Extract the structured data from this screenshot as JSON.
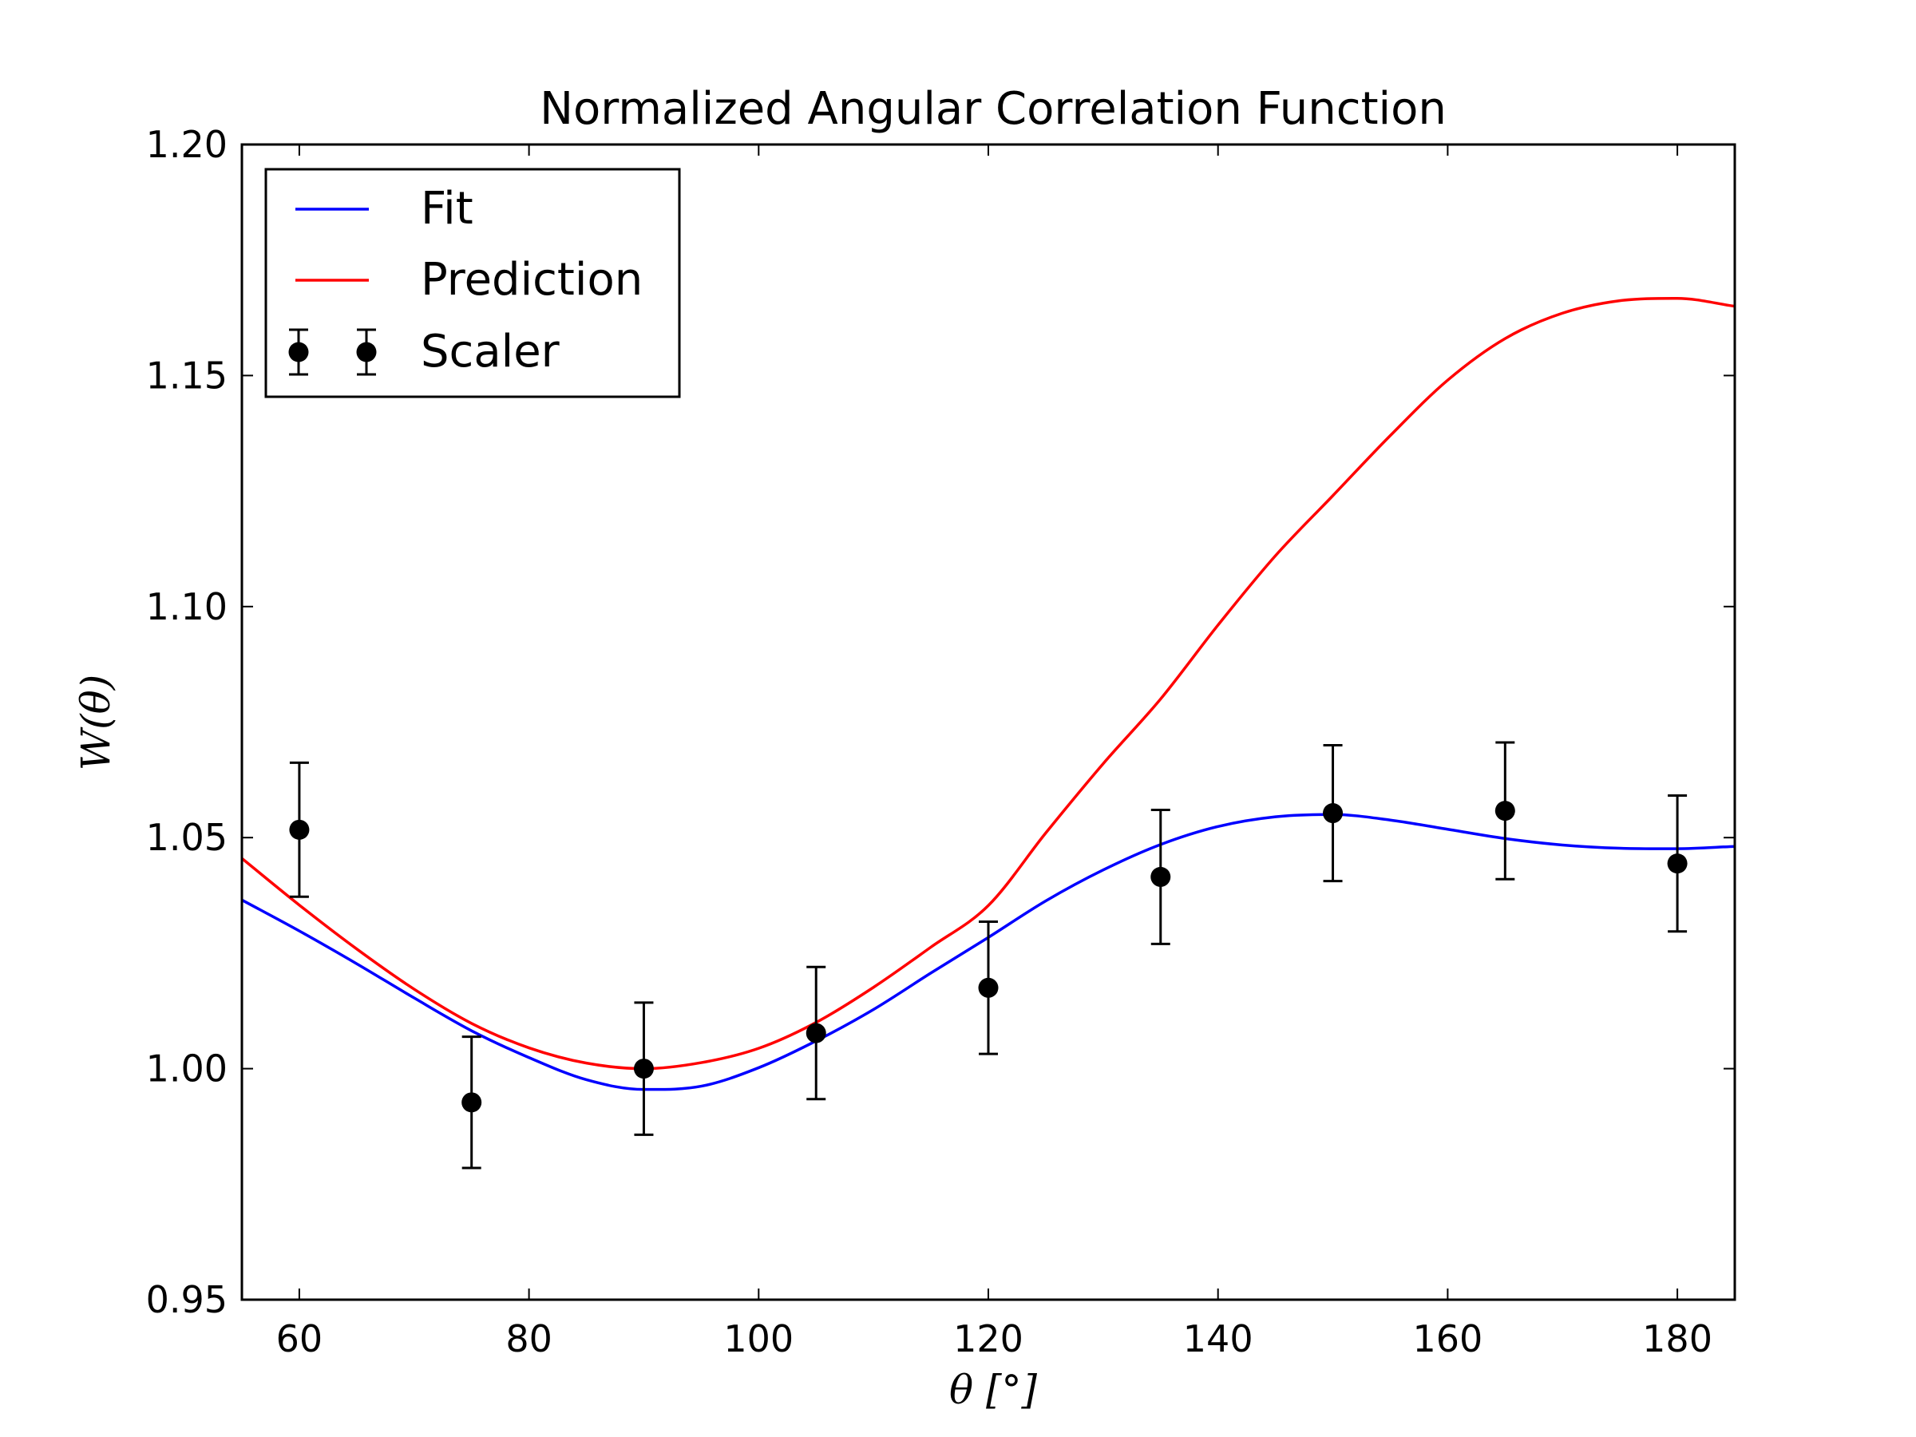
{
  "chart_data": {
    "type": "scatter",
    "title": "Normalized Angular Correlation Function",
    "xlabel": "θ [°]",
    "ylabel": "W(θ)",
    "xlim": [
      55,
      185
    ],
    "ylim": [
      0.95,
      1.2
    ],
    "xticks": [
      60,
      80,
      100,
      120,
      140,
      160,
      180
    ],
    "xtick_labels": [
      "60",
      "80",
      "100",
      "120",
      "140",
      "160",
      "180"
    ],
    "yticks": [
      0.95,
      1.0,
      1.05,
      1.1,
      1.15,
      1.2
    ],
    "ytick_labels": [
      "0.95",
      "1.00",
      "1.05",
      "1.10",
      "1.15",
      "1.20"
    ],
    "grid": false,
    "legend_position": "top-left",
    "series": [
      {
        "name": "Fit",
        "kind": "line",
        "color": "#0000ff",
        "x": [
          55,
          60,
          65,
          70,
          75,
          80,
          85,
          90,
          95,
          100,
          105,
          110,
          115,
          120,
          125,
          130,
          135,
          140,
          145,
          150,
          155,
          160,
          165,
          170,
          175,
          180,
          185
        ],
        "y": [
          1.0365,
          1.0298,
          1.0227,
          1.0153,
          1.0082,
          1.0024,
          0.9976,
          0.9955,
          0.9962,
          1.0002,
          1.006,
          1.0128,
          1.0207,
          1.0284,
          1.0363,
          1.043,
          1.0485,
          1.0524,
          1.0545,
          1.055,
          1.0538,
          1.0518,
          1.0498,
          1.0484,
          1.0477,
          1.0476,
          1.0481
        ]
      },
      {
        "name": "Prediction",
        "kind": "line",
        "color": "#ff0000",
        "x": [
          55,
          60,
          65,
          70,
          75,
          80,
          85,
          90,
          95,
          100,
          105,
          110,
          115,
          120,
          125,
          130,
          135,
          140,
          145,
          150,
          155,
          160,
          165,
          170,
          175,
          180,
          185
        ],
        "y": [
          1.0455,
          1.0354,
          1.0259,
          1.0172,
          1.0098,
          1.0045,
          1.0012,
          1.0,
          1.0013,
          1.0044,
          1.01,
          1.0176,
          1.0263,
          1.0353,
          1.051,
          1.066,
          1.08,
          1.096,
          1.111,
          1.124,
          1.137,
          1.149,
          1.158,
          1.1635,
          1.1662,
          1.1667,
          1.165
        ]
      },
      {
        "name": "Scaler",
        "kind": "errorbar",
        "color": "#000000",
        "x": [
          60,
          75,
          90,
          105,
          120,
          135,
          150,
          165,
          180
        ],
        "y": [
          1.0517,
          0.9927,
          1.0,
          1.0077,
          1.0175,
          1.0415,
          1.0553,
          1.0558,
          1.0444
        ],
        "yerr": [
          0.0145,
          0.0142,
          0.0143,
          0.0143,
          0.0143,
          0.0145,
          0.0147,
          0.0148,
          0.0147
        ]
      }
    ]
  }
}
